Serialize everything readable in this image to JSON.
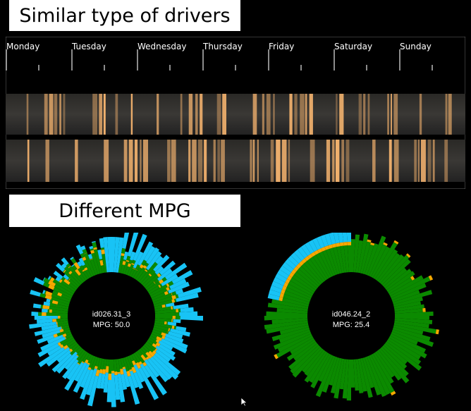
{
  "sections": {
    "drivers_title": "Similar type of drivers",
    "mpg_title": "Different MPG"
  },
  "timeline": {
    "days": [
      "Monday",
      "Tuesday",
      "Wednesday",
      "Thursday",
      "Friday",
      "Saturday",
      "Sunday"
    ],
    "bar_color": "#f3b26e",
    "track_color": "#3a3835"
  },
  "drivers": [
    {
      "id": "id026.31_3",
      "mpg_label": "MPG: 50.0"
    },
    {
      "id": "id046.24_2",
      "mpg_label": "MPG: 25.4"
    }
  ],
  "colors": {
    "cyan": "#18c3f5",
    "orange": "#f7a800",
    "green": "#0b8a00",
    "title_bg": "#ffffff"
  }
}
